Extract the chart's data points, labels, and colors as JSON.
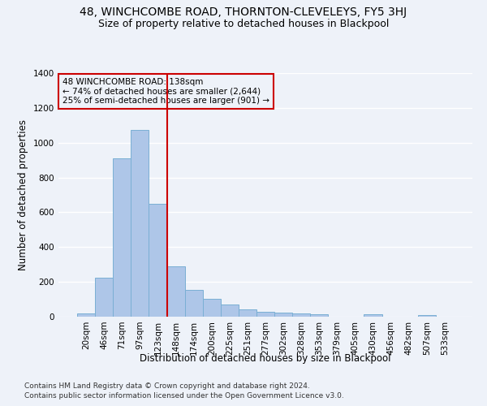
{
  "title": "48, WINCHCOMBE ROAD, THORNTON-CLEVELEYS, FY5 3HJ",
  "subtitle": "Size of property relative to detached houses in Blackpool",
  "xlabel": "Distribution of detached houses by size in Blackpool",
  "ylabel": "Number of detached properties",
  "footnote1": "Contains HM Land Registry data © Crown copyright and database right 2024.",
  "footnote2": "Contains public sector information licensed under the Open Government Licence v3.0.",
  "annotation_line1": "48 WINCHCOMBE ROAD: 138sqm",
  "annotation_line2": "← 74% of detached houses are smaller (2,644)",
  "annotation_line3": "25% of semi-detached houses are larger (901) →",
  "bar_labels": [
    "20sqm",
    "46sqm",
    "71sqm",
    "97sqm",
    "123sqm",
    "148sqm",
    "174sqm",
    "200sqm",
    "225sqm",
    "251sqm",
    "277sqm",
    "302sqm",
    "328sqm",
    "353sqm",
    "379sqm",
    "405sqm",
    "430sqm",
    "456sqm",
    "482sqm",
    "507sqm",
    "533sqm"
  ],
  "bar_values": [
    18,
    225,
    910,
    1075,
    650,
    290,
    155,
    105,
    72,
    40,
    28,
    25,
    18,
    15,
    0,
    0,
    12,
    0,
    0,
    10,
    0
  ],
  "bar_color": "#aec6e8",
  "bar_edge_color": "#7aafd4",
  "vline_x": 4.5,
  "vline_color": "#cc0000",
  "annotation_box_color": "#cc0000",
  "ylim": [
    0,
    1400
  ],
  "yticks": [
    0,
    200,
    400,
    600,
    800,
    1000,
    1200,
    1400
  ],
  "background_color": "#eef2f9",
  "grid_color": "#ffffff",
  "title_fontsize": 10,
  "subtitle_fontsize": 9,
  "xlabel_fontsize": 8.5,
  "ylabel_fontsize": 8.5,
  "tick_fontsize": 7.5,
  "footnote_fontsize": 6.5,
  "annotation_fontsize": 7.5
}
